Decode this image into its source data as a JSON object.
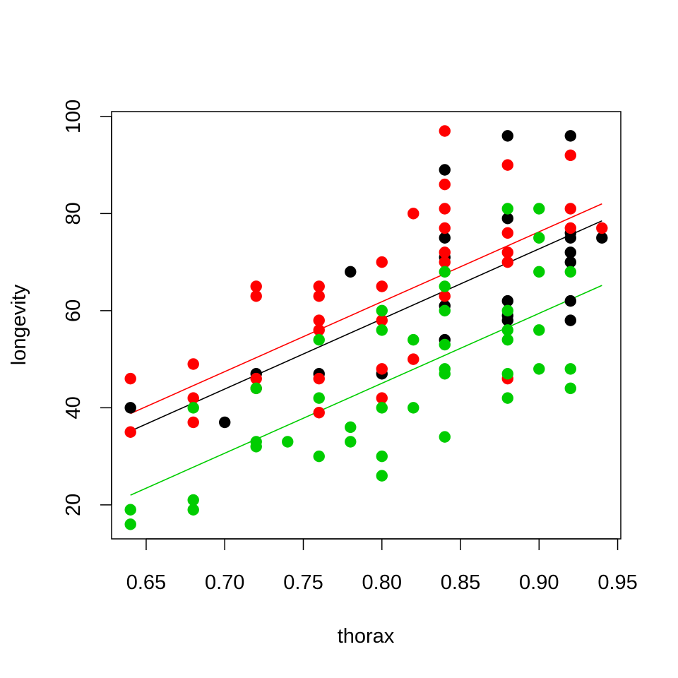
{
  "chart_data": {
    "type": "scatter",
    "title": "",
    "xlabel": "thorax",
    "ylabel": "longevity",
    "xlim": [
      0.628,
      0.952
    ],
    "ylim": [
      13,
      101
    ],
    "xticks": [
      0.65,
      0.7,
      0.75,
      0.8,
      0.85,
      0.9,
      0.95
    ],
    "xtick_labels": [
      "0.65",
      "0.70",
      "0.75",
      "0.80",
      "0.85",
      "0.90",
      "0.95"
    ],
    "yticks": [
      20,
      40,
      60,
      80,
      100
    ],
    "ytick_labels": [
      "20",
      "40",
      "60",
      "80",
      "100"
    ],
    "grid": false,
    "series": [
      {
        "color": "#000000",
        "points": [
          [
            0.64,
            40
          ],
          [
            0.72,
            47
          ],
          [
            0.7,
            37
          ],
          [
            0.76,
            47
          ],
          [
            0.78,
            68
          ],
          [
            0.8,
            47
          ],
          [
            0.84,
            89
          ],
          [
            0.84,
            75
          ],
          [
            0.84,
            71
          ],
          [
            0.84,
            61
          ],
          [
            0.84,
            54
          ],
          [
            0.88,
            96
          ],
          [
            0.88,
            79
          ],
          [
            0.88,
            62
          ],
          [
            0.88,
            59
          ],
          [
            0.88,
            58
          ],
          [
            0.92,
            96
          ],
          [
            0.92,
            76
          ],
          [
            0.92,
            75
          ],
          [
            0.92,
            72
          ],
          [
            0.92,
            70
          ],
          [
            0.92,
            62
          ],
          [
            0.92,
            58
          ],
          [
            0.94,
            75
          ]
        ],
        "fit": [
          [
            0.64,
            35.2
          ],
          [
            0.94,
            78.5
          ]
        ]
      },
      {
        "color": "#ff0000",
        "points": [
          [
            0.64,
            46
          ],
          [
            0.64,
            35
          ],
          [
            0.68,
            49
          ],
          [
            0.68,
            42
          ],
          [
            0.68,
            37
          ],
          [
            0.72,
            65
          ],
          [
            0.72,
            63
          ],
          [
            0.72,
            46
          ],
          [
            0.72,
            44
          ],
          [
            0.76,
            65
          ],
          [
            0.76,
            63
          ],
          [
            0.76,
            58
          ],
          [
            0.76,
            56
          ],
          [
            0.76,
            46
          ],
          [
            0.76,
            39
          ],
          [
            0.8,
            70
          ],
          [
            0.8,
            65
          ],
          [
            0.8,
            58
          ],
          [
            0.8,
            48
          ],
          [
            0.8,
            42
          ],
          [
            0.82,
            80
          ],
          [
            0.82,
            50
          ],
          [
            0.84,
            97
          ],
          [
            0.84,
            86
          ],
          [
            0.84,
            81
          ],
          [
            0.84,
            77
          ],
          [
            0.84,
            72
          ],
          [
            0.84,
            70
          ],
          [
            0.84,
            63
          ],
          [
            0.88,
            90
          ],
          [
            0.88,
            76
          ],
          [
            0.88,
            72
          ],
          [
            0.88,
            70
          ],
          [
            0.88,
            46
          ],
          [
            0.92,
            92
          ],
          [
            0.92,
            81
          ],
          [
            0.92,
            77
          ],
          [
            0.94,
            77
          ]
        ],
        "fit": [
          [
            0.64,
            38.8
          ],
          [
            0.94,
            82
          ]
        ]
      },
      {
        "color": "#00cd00",
        "points": [
          [
            0.64,
            19
          ],
          [
            0.64,
            16
          ],
          [
            0.68,
            40
          ],
          [
            0.68,
            21
          ],
          [
            0.68,
            19
          ],
          [
            0.72,
            44
          ],
          [
            0.72,
            33
          ],
          [
            0.72,
            32
          ],
          [
            0.74,
            33
          ],
          [
            0.76,
            54
          ],
          [
            0.76,
            42
          ],
          [
            0.76,
            30
          ],
          [
            0.78,
            36
          ],
          [
            0.78,
            33
          ],
          [
            0.8,
            60
          ],
          [
            0.8,
            56
          ],
          [
            0.8,
            40
          ],
          [
            0.8,
            30
          ],
          [
            0.8,
            26
          ],
          [
            0.82,
            54
          ],
          [
            0.82,
            40
          ],
          [
            0.84,
            68
          ],
          [
            0.84,
            65
          ],
          [
            0.84,
            60
          ],
          [
            0.84,
            53
          ],
          [
            0.84,
            48
          ],
          [
            0.84,
            47
          ],
          [
            0.84,
            34
          ],
          [
            0.88,
            81
          ],
          [
            0.88,
            60
          ],
          [
            0.88,
            56
          ],
          [
            0.88,
            54
          ],
          [
            0.88,
            47
          ],
          [
            0.88,
            42
          ],
          [
            0.9,
            81
          ],
          [
            0.9,
            75
          ],
          [
            0.9,
            68
          ],
          [
            0.9,
            56
          ],
          [
            0.9,
            48
          ],
          [
            0.92,
            68
          ],
          [
            0.92,
            48
          ],
          [
            0.92,
            44
          ]
        ],
        "fit": [
          [
            0.64,
            22
          ],
          [
            0.94,
            65.2
          ]
        ]
      }
    ]
  }
}
